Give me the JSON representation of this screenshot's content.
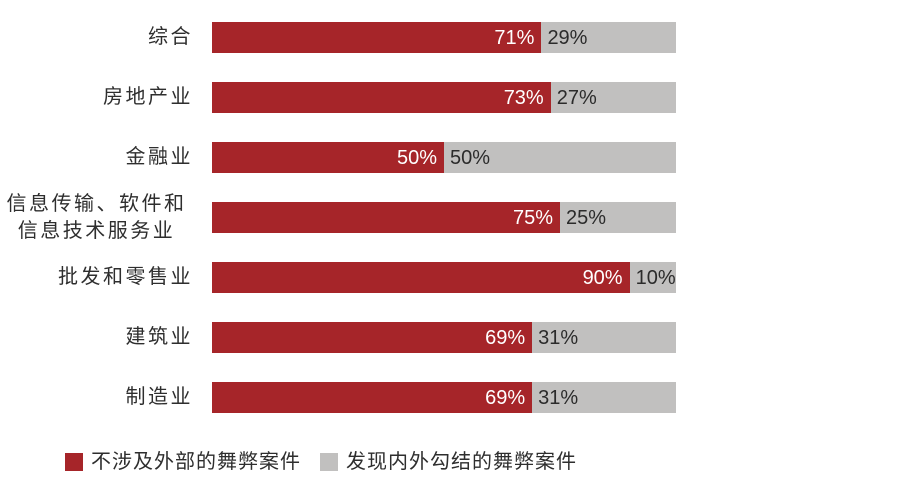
{
  "chart_data": {
    "type": "bar",
    "orientation": "horizontal",
    "stacked": true,
    "title": "",
    "xlabel": "",
    "ylabel": "",
    "xlim": [
      0,
      100
    ],
    "grid": false,
    "axes_visible": false,
    "value_suffix": "%",
    "legend_position": "bottom-left",
    "categories": [
      "综合",
      "房地产业",
      "金融业",
      "信息传输、软件和\n信息技术服务业",
      "批发和零售业",
      "建筑业",
      "制造业"
    ],
    "series": [
      {
        "name": "不涉及外部的舞弊案件",
        "color": "#A62529",
        "value_label_color": "#FFFFFF",
        "values": [
          71,
          73,
          50,
          75,
          90,
          69,
          69
        ]
      },
      {
        "name": "发现内外勾结的舞弊案件",
        "color": "#C1C0BF",
        "value_label_color": "#2B2B2B",
        "values": [
          29,
          27,
          50,
          25,
          10,
          31,
          31
        ]
      }
    ]
  },
  "colors": {
    "background": "#FFFFFF",
    "label_text": "#2E2E2E"
  }
}
